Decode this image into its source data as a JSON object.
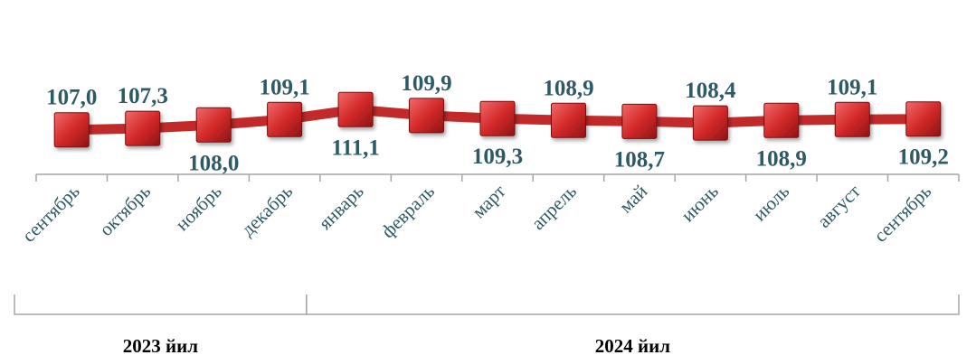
{
  "chart_data": {
    "type": "line",
    "categories": [
      "сентябрь",
      "октябрь",
      "ноябрь",
      "декабрь",
      "январь",
      "февраль",
      "март",
      "апрель",
      "май",
      "июнь",
      "июль",
      "август",
      "сентябрь"
    ],
    "values": [
      107.0,
      107.3,
      108.0,
      109.1,
      111.1,
      109.9,
      109.3,
      108.9,
      108.7,
      108.4,
      108.9,
      109.1,
      109.2
    ],
    "value_labels": [
      "107,0",
      "107,3",
      "108,0",
      "109,1",
      "111,1",
      "109,9",
      "109,3",
      "108,9",
      "108,7",
      "108,4",
      "108,9",
      "109,1",
      "109,2"
    ],
    "label_positions": [
      "above",
      "above",
      "below",
      "above",
      "below",
      "above",
      "below",
      "above",
      "below",
      "above",
      "below",
      "above",
      "below"
    ],
    "groups": [
      {
        "label": "2023 йил",
        "from": 0,
        "to": 3
      },
      {
        "label": "2024 йил",
        "from": 4,
        "to": 12
      }
    ],
    "ylim": [
      100,
      130
    ],
    "grid": false,
    "legend": "none",
    "colors": {
      "line": "#c22a2a",
      "marker": "#d42a2a",
      "marker_edge": "#7a1010",
      "labels": "#2e5a66",
      "axis": "#a6a6a6"
    }
  }
}
